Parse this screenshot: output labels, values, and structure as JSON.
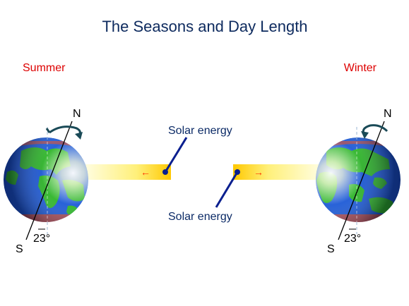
{
  "title": "The Seasons and Day Length",
  "labels": {
    "summer": "Summer",
    "winter": "Winter",
    "solar_energy_top": "Solar energy",
    "solar_energy_bottom": "Solar energy",
    "north_left": "N",
    "south_left": "S",
    "north_right": "N",
    "south_right": "S",
    "tilt_left": "23°",
    "tilt_right": "23°",
    "arrow_left": "←",
    "arrow_right": "→"
  },
  "colors": {
    "title": "#0d2a5e",
    "season": "#dd0000",
    "label": "#0b2a66",
    "pointer": "#0a1f8f",
    "ocean": "#1d5ad6",
    "land": "#2fb52a",
    "beam": "#ffd200",
    "arrow": "#ff3300"
  },
  "icons": {
    "rotation": "rotation-arrow-icon"
  }
}
